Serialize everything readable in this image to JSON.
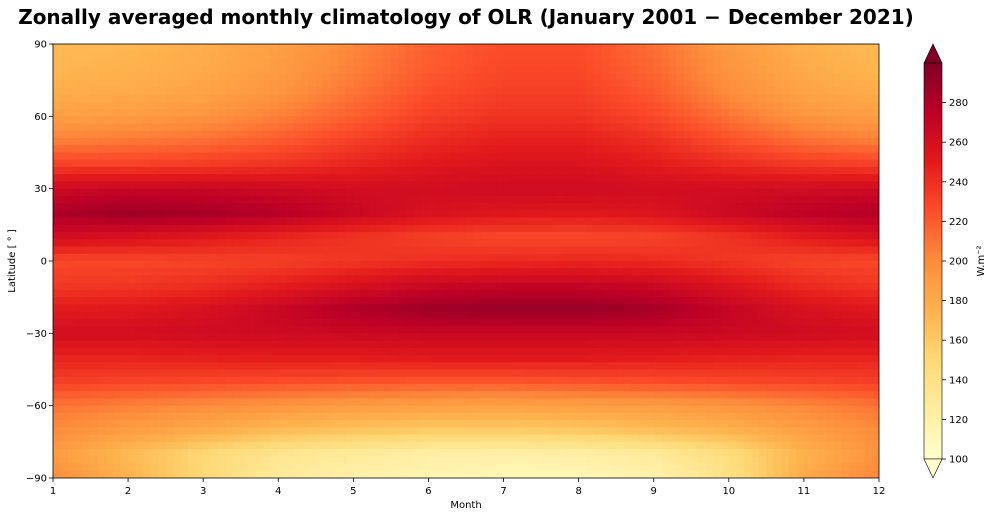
{
  "chart_data": {
    "type": "heatmap",
    "title": "Zonally averaged monthly climatology of OLR (January 2001 − December 2021)",
    "xlabel": "Month",
    "ylabel": "Latitude [ ° ]",
    "colorbar_label": "W.m⁻²",
    "xlim": [
      1,
      12
    ],
    "ylim": [
      -90,
      90
    ],
    "zlim": [
      100,
      300
    ],
    "colorbar_extend": "both",
    "x_ticks": [
      "1",
      "2",
      "3",
      "4",
      "5",
      "6",
      "7",
      "8",
      "9",
      "10",
      "11",
      "12"
    ],
    "y_ticks": [
      "−90",
      "−60",
      "−30",
      "0",
      "30",
      "60",
      "90"
    ],
    "colorbar_ticks": [
      "100",
      "120",
      "140",
      "160",
      "180",
      "200",
      "220",
      "240",
      "260",
      "280"
    ],
    "colormap": [
      "#ffffcc",
      "#ffeda0",
      "#fed976",
      "#feb24c",
      "#fd8d3c",
      "#fc4e2a",
      "#e31a1c",
      "#bd0026",
      "#800026"
    ],
    "months": [
      1,
      2,
      3,
      4,
      5,
      6,
      7,
      8,
      9,
      10,
      11,
      12
    ],
    "latitudes": [
      -90,
      -80,
      -70,
      -60,
      -50,
      -40,
      -30,
      -20,
      -10,
      0,
      10,
      20,
      30,
      40,
      50,
      60,
      70,
      80,
      90
    ],
    "values": [
      [
        200,
        175,
        150,
        128,
        120,
        115,
        112,
        112,
        118,
        140,
        180,
        205
      ],
      [
        190,
        170,
        150,
        135,
        128,
        122,
        120,
        122,
        128,
        145,
        175,
        195
      ],
      [
        200,
        190,
        180,
        170,
        165,
        160,
        160,
        162,
        168,
        175,
        188,
        200
      ],
      [
        210,
        205,
        200,
        195,
        190,
        188,
        186,
        188,
        190,
        195,
        202,
        210
      ],
      [
        232,
        230,
        228,
        226,
        224,
        222,
        222,
        224,
        226,
        228,
        230,
        232
      ],
      [
        246,
        246,
        248,
        250,
        250,
        252,
        252,
        252,
        250,
        248,
        246,
        246
      ],
      [
        262,
        262,
        264,
        265,
        266,
        268,
        268,
        268,
        267,
        266,
        264,
        262
      ],
      [
        250,
        252,
        258,
        268,
        280,
        288,
        290,
        290,
        285,
        270,
        258,
        252
      ],
      [
        235,
        236,
        240,
        248,
        258,
        266,
        270,
        270,
        266,
        255,
        242,
        236
      ],
      [
        228,
        228,
        230,
        232,
        236,
        240,
        242,
        244,
        242,
        236,
        230,
        228
      ],
      [
        262,
        258,
        252,
        245,
        238,
        232,
        228,
        228,
        230,
        238,
        250,
        258
      ],
      [
        282,
        288,
        285,
        278,
        268,
        258,
        254,
        252,
        256,
        266,
        274,
        280
      ],
      [
        265,
        268,
        268,
        265,
        262,
        262,
        264,
        264,
        262,
        262,
        263,
        264
      ],
      [
        232,
        232,
        234,
        238,
        245,
        252,
        256,
        256,
        250,
        242,
        235,
        232
      ],
      [
        205,
        208,
        212,
        220,
        232,
        242,
        248,
        248,
        240,
        225,
        212,
        205
      ],
      [
        188,
        190,
        195,
        205,
        218,
        232,
        238,
        238,
        228,
        210,
        195,
        188
      ],
      [
        178,
        180,
        185,
        195,
        210,
        225,
        232,
        232,
        220,
        200,
        185,
        178
      ],
      [
        172,
        175,
        180,
        190,
        205,
        220,
        228,
        228,
        215,
        195,
        180,
        172
      ],
      [
        170,
        172,
        178,
        188,
        202,
        218,
        226,
        226,
        212,
        192,
        176,
        170
      ]
    ]
  }
}
